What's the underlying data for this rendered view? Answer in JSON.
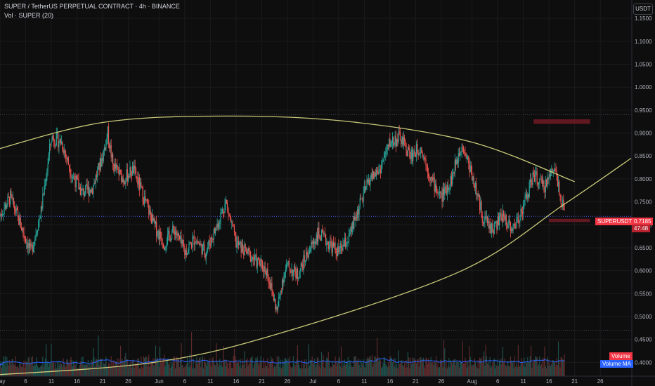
{
  "header": {
    "title": "SUPER / TetherUS PERPETUAL CONTRACT · 4h · BINANCE",
    "indicator": "Vol · SUPER (20)"
  },
  "currency_button": "USDT",
  "price_tag": {
    "symbol": "SUPERUSDT.P",
    "price": "0.7185",
    "countdown": "47:48"
  },
  "volume_legend": {
    "volume": "Volume",
    "volume_ma": "Volume MA"
  },
  "colors": {
    "background": "#0e0e0e",
    "up": "#26a69a",
    "down": "#ef5350",
    "curve": "#c9c97a",
    "zone": "#6b1a24",
    "price_tag": "#f23645",
    "volume_ma": "#2962ff"
  },
  "chart_data": {
    "type": "candlestick",
    "timeframe": "4h",
    "y_axis": {
      "ticks": [
        "1.1500",
        "1.1000",
        "1.0500",
        "1.0000",
        "0.9500",
        "0.9000",
        "0.8500",
        "0.8000",
        "0.7500",
        "0.7000",
        "0.6500",
        "0.6000",
        "0.5500",
        "0.5000",
        "0.4500",
        "0.4000"
      ],
      "range": [
        0.37,
        1.19
      ]
    },
    "x_axis": {
      "ticks": [
        "May",
        "6",
        "11",
        "16",
        "21",
        "26",
        "Jun",
        "6",
        "11",
        "16",
        "21",
        "26",
        "Jul",
        "6",
        "11",
        "16",
        "21",
        "26",
        "Aug",
        "6",
        "11",
        "16",
        "21",
        "26"
      ],
      "tick_days": [
        0,
        5,
        10,
        15,
        20,
        25,
        31,
        36,
        41,
        46,
        51,
        56,
        61,
        66,
        71,
        76,
        81,
        86,
        92,
        97,
        102,
        107,
        112,
        117
      ],
      "day_range": [
        0,
        123
      ]
    },
    "price_anchors": [
      [
        0,
        0.72
      ],
      [
        2,
        0.76
      ],
      [
        4,
        0.7
      ],
      [
        6,
        0.64
      ],
      [
        8,
        0.73
      ],
      [
        10,
        0.89
      ],
      [
        12,
        0.88
      ],
      [
        14,
        0.81
      ],
      [
        16,
        0.77
      ],
      [
        18,
        0.78
      ],
      [
        20,
        0.85
      ],
      [
        21,
        0.9
      ],
      [
        22,
        0.83
      ],
      [
        24,
        0.8
      ],
      [
        26,
        0.82
      ],
      [
        28,
        0.76
      ],
      [
        30,
        0.7
      ],
      [
        32,
        0.66
      ],
      [
        34,
        0.69
      ],
      [
        36,
        0.64
      ],
      [
        38,
        0.67
      ],
      [
        40,
        0.64
      ],
      [
        42,
        0.69
      ],
      [
        44,
        0.75
      ],
      [
        46,
        0.66
      ],
      [
        48,
        0.64
      ],
      [
        50,
        0.62
      ],
      [
        52,
        0.6
      ],
      [
        54,
        0.51
      ],
      [
        55,
        0.58
      ],
      [
        56,
        0.61
      ],
      [
        58,
        0.59
      ],
      [
        60,
        0.64
      ],
      [
        62,
        0.68
      ],
      [
        64,
        0.66
      ],
      [
        66,
        0.64
      ],
      [
        68,
        0.67
      ],
      [
        70,
        0.74
      ],
      [
        72,
        0.8
      ],
      [
        74,
        0.82
      ],
      [
        76,
        0.88
      ],
      [
        78,
        0.89
      ],
      [
        80,
        0.85
      ],
      [
        82,
        0.87
      ],
      [
        84,
        0.8
      ],
      [
        86,
        0.76
      ],
      [
        88,
        0.8
      ],
      [
        90,
        0.88
      ],
      [
        92,
        0.81
      ],
      [
        94,
        0.72
      ],
      [
        96,
        0.69
      ],
      [
        98,
        0.72
      ],
      [
        100,
        0.69
      ],
      [
        102,
        0.74
      ],
      [
        104,
        0.81
      ],
      [
        106,
        0.78
      ],
      [
        108,
        0.83
      ],
      [
        109,
        0.78
      ],
      [
        110,
        0.72
      ]
    ],
    "last_price": 0.7185,
    "resistance_curve": [
      [
        -2,
        0.86
      ],
      [
        20,
        0.923
      ],
      [
        44,
        0.937
      ],
      [
        68,
        0.925
      ],
      [
        92,
        0.88
      ],
      [
        112,
        0.794
      ]
    ],
    "support_curve": [
      [
        -2,
        0.372
      ],
      [
        30,
        0.4
      ],
      [
        55,
        0.465
      ],
      [
        90,
        0.6
      ],
      [
        110,
        0.745
      ],
      [
        123,
        0.845
      ]
    ],
    "zones": [
      {
        "day_start": 104,
        "day_end": 115,
        "top": 0.93,
        "bottom": 0.92
      },
      {
        "day_start": 107,
        "day_end": 115,
        "top": 0.713,
        "bottom": 0.706
      }
    ],
    "horizontal_levels": [
      0.94,
      0.4702
    ]
  }
}
